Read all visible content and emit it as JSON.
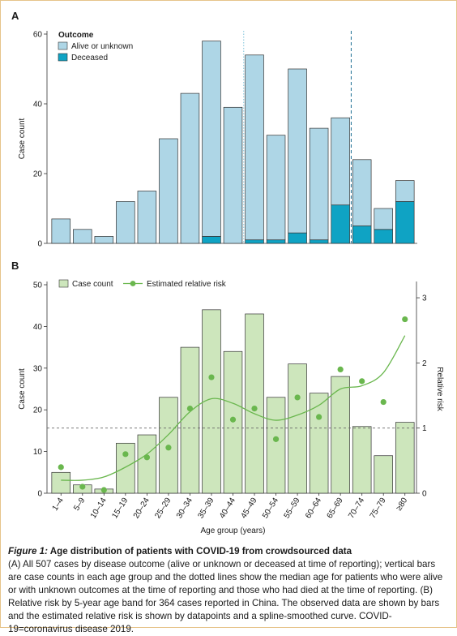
{
  "chart_data": [
    {
      "panel_label": "A",
      "type": "bar",
      "stacked": true,
      "categories": [
        "1–4",
        "5–9",
        "10–14",
        "15–19",
        "20–24",
        "25–29",
        "30–34",
        "35–39",
        "40–44",
        "45–49",
        "50–54",
        "55–59",
        "60–64",
        "65–69",
        "70–74",
        "75–79",
        "≥80"
      ],
      "series": [
        {
          "name": "Alive or unknown",
          "color": "#aed6e6",
          "values": [
            7,
            4,
            2,
            12,
            15,
            30,
            43,
            56,
            39,
            53,
            30,
            47,
            32,
            25,
            19,
            6,
            6
          ]
        },
        {
          "name": "Deceased",
          "color": "#0fa3c4",
          "values": [
            0,
            0,
            0,
            0,
            0,
            0,
            0,
            2,
            0,
            1,
            1,
            3,
            1,
            11,
            5,
            4,
            12
          ]
        }
      ],
      "ylabel": "Case count",
      "ylim": [
        0,
        60
      ],
      "yticks": [
        0,
        20,
        40,
        60
      ],
      "legend_title": "Outcome",
      "legend_position": "top-left",
      "median_lines": [
        {
          "style": "dotted",
          "color": "#7fc4dc",
          "between_categories": [
            8,
            9
          ]
        },
        {
          "style": "dashed",
          "color": "#1f6f94",
          "between_categories": [
            13,
            14
          ]
        }
      ]
    },
    {
      "panel_label": "B",
      "type": "bar",
      "categories": [
        "1–4",
        "5–9",
        "10–14",
        "15–19",
        "20–24",
        "25–29",
        "30–34",
        "35–39",
        "40–44",
        "45–49",
        "50–54",
        "55–59",
        "60–64",
        "65–69",
        "70–74",
        "75–79",
        "≥80"
      ],
      "series": [
        {
          "name": "Case count",
          "type": "bar",
          "color": "#cde6bc",
          "values": [
            5,
            2,
            1,
            12,
            14,
            23,
            35,
            44,
            34,
            43,
            23,
            31,
            24,
            28,
            16,
            9,
            17
          ]
        },
        {
          "name": "Estimated relative risk",
          "type": "scatter+line",
          "axis": "right",
          "color": "#6ab74e",
          "values": [
            0.4,
            0.1,
            0.05,
            0.6,
            0.55,
            0.7,
            1.3,
            1.78,
            1.13,
            1.3,
            0.83,
            1.47,
            1.17,
            1.9,
            1.72,
            1.4,
            2.67
          ],
          "smooth": [
            0.2,
            0.2,
            0.25,
            0.4,
            0.6,
            0.9,
            1.25,
            1.45,
            1.38,
            1.22,
            1.12,
            1.2,
            1.35,
            1.6,
            1.65,
            1.85,
            2.42
          ]
        }
      ],
      "ylabel": "Case count",
      "ylim": [
        0,
        50
      ],
      "yticks": [
        0,
        10,
        20,
        30,
        40,
        50
      ],
      "y2label": "Relative risk",
      "y2lim": [
        0,
        3.2
      ],
      "y2ticks": [
        0,
        1,
        2,
        3
      ],
      "reference_line": {
        "axis": "right",
        "value": 1,
        "style": "dashed"
      },
      "xlabel": "Age group (years)",
      "legend_position": "top-left"
    }
  ],
  "caption": {
    "title_prefix": "Figure 1:",
    "title_rest": " Age distribution of patients with COVID-19 from crowdsourced data",
    "body": "(A) All 507 cases by disease outcome (alive or unknown or deceased at time of reporting); vertical bars are case counts in each age group and the dotted lines show the median age for patients who were alive or with unknown outcomes at the time of reporting and those who had died at the time of reporting. (B) Relative risk by 5-year age band for 364 cases reported in China. The observed data are shown by bars and the estimated relative risk is shown by datapoints and a spline-smoothed curve. COVID-19=coronavirus disease 2019."
  }
}
